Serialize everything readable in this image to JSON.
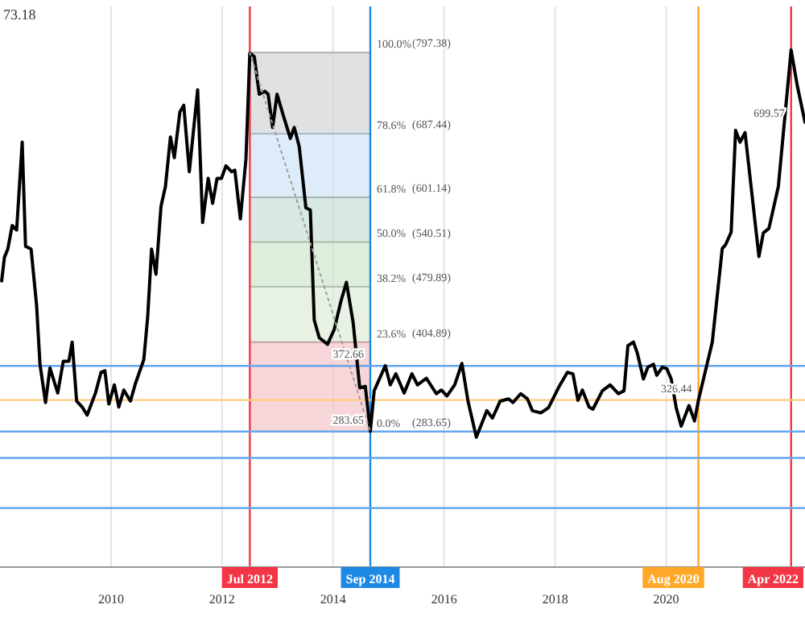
{
  "chart_data": {
    "type": "line",
    "xlim": [
      2008,
      2022.5
    ],
    "xticks": [
      2010,
      2012,
      2014,
      2016,
      2018,
      2020
    ],
    "ylim": [
      100,
      860
    ],
    "yticks": [
      {
        "value": 797.38,
        "label": "(797.38)"
      },
      {
        "value": 687.44,
        "label": "(687.44)"
      },
      {
        "value": 601.14,
        "label": "(601.14)"
      },
      {
        "value": 540.51,
        "label": "(540.51)"
      },
      {
        "value": 479.89,
        "label": "(479.89)"
      },
      {
        "value": 404.89,
        "label": "(404.89)"
      },
      {
        "value": 283.65,
        "label": "(283.65)"
      }
    ],
    "grid": "x",
    "marker": "none",
    "line_style": "solid",
    "series": [
      {
        "color": "#000000",
        "x": [
          2008.03,
          2008.08,
          2008.14,
          2008.22,
          2008.3,
          2008.4,
          2008.46,
          2008.56,
          2008.66,
          2008.72,
          2008.82,
          2008.9,
          2009.04,
          2009.14,
          2009.24,
          2009.3,
          2009.38,
          2009.48,
          2009.57,
          2009.72,
          2009.82,
          2009.89,
          2009.96,
          2010.06,
          2010.14,
          2010.23,
          2010.35,
          2010.44,
          2010.59,
          2010.66,
          2010.73,
          2010.81,
          2010.9,
          2010.98,
          2011.07,
          2011.14,
          2011.24,
          2011.31,
          2011.41,
          2011.56,
          2011.65,
          2011.75,
          2011.83,
          2011.91,
          2011.99,
          2012.07,
          2012.17,
          2012.23,
          2012.33,
          2012.43,
          2012.5,
          2012.58,
          2012.67,
          2012.77,
          2012.83,
          2012.91,
          2012.99,
          2013.1,
          2013.23,
          2013.3,
          2013.39,
          2013.51,
          2013.59,
          2013.66,
          2013.75,
          2013.9,
          2014.02,
          2014.14,
          2014.24,
          2014.36,
          2014.48,
          2014.58,
          2014.67,
          2014.74,
          2014.94,
          2015.03,
          2015.13,
          2015.28,
          2015.42,
          2015.52,
          2015.68,
          2015.86,
          2015.95,
          2016.05,
          2016.19,
          2016.32,
          2016.43,
          2016.58,
          2016.77,
          2016.87,
          2017.01,
          2017.16,
          2017.24,
          2017.38,
          2017.5,
          2017.59,
          2017.74,
          2017.88,
          2018.08,
          2018.22,
          2018.32,
          2018.41,
          2018.49,
          2018.61,
          2018.68,
          2018.85,
          2018.99,
          2019.14,
          2019.24,
          2019.31,
          2019.41,
          2019.48,
          2019.59,
          2019.67,
          2019.77,
          2019.83,
          2019.93,
          2020.01,
          2020.09,
          2020.18,
          2020.27,
          2020.41,
          2020.51,
          2020.58,
          2020.83,
          2021.01,
          2021.07,
          2021.17,
          2021.25,
          2021.33,
          2021.42,
          2021.67,
          2021.75,
          2021.85,
          2022.02,
          2022.25,
          2022.36,
          2022.5
        ],
        "values": [
          488,
          520,
          531,
          563,
          557,
          676,
          535,
          531,
          454,
          375,
          323,
          370,
          336,
          379,
          379,
          405,
          325,
          317,
          306,
          336,
          364,
          366,
          321,
          347,
          317,
          340,
          325,
          349,
          381,
          439,
          531,
          497,
          589,
          616,
          683,
          655,
          717,
          726,
          636,
          747,
          567,
          627,
          593,
          627,
          627,
          644,
          636,
          638,
          572,
          653,
          797,
          792,
          741,
          745,
          741,
          696,
          741,
          713,
          681,
          696,
          670,
          587,
          584,
          435,
          411,
          402,
          422,
          460,
          486,
          432,
          343,
          345,
          284,
          339,
          373,
          347,
          362,
          336,
          362,
          347,
          356,
          335,
          340,
          332,
          347,
          376,
          325,
          276,
          312,
          302,
          325,
          328,
          323,
          335,
          328,
          312,
          309,
          316,
          346,
          364,
          362,
          326,
          340,
          317,
          314,
          339,
          347,
          335,
          339,
          400,
          405,
          390,
          355,
          371,
          375,
          360,
          371,
          369,
          355,
          316,
          291,
          319,
          298,
          326,
          405,
          532,
          537,
          554,
          692,
          676,
          689,
          521,
          553,
          559,
          616,
          801,
          753,
          703
        ]
      },
      {
        "color": "#9e9e9e",
        "line_style": "dotted",
        "x": [
          2012.5,
          2014.67
        ],
        "values": [
          797.38,
          283.65
        ]
      }
    ],
    "bands": [
      {
        "axis": "y",
        "from": 687.44,
        "to": 797.38,
        "color": "#d6d7da"
      },
      {
        "axis": "y",
        "from": 601.14,
        "to": 687.44,
        "color": "#d3e5f7"
      },
      {
        "axis": "y",
        "from": 540.51,
        "to": 601.14,
        "color": "#c9e0dc"
      },
      {
        "axis": "y",
        "from": 479.89,
        "to": 540.51,
        "color": "#d3e8d0"
      },
      {
        "axis": "y",
        "from": 404.89,
        "to": 479.89,
        "color": "#dfeddc"
      },
      {
        "axis": "y",
        "from": 283.65,
        "to": 404.89,
        "color": "#f3c8cb"
      }
    ],
    "ref_lines": [
      {
        "axis": "x",
        "value": 2012.5,
        "label": "Jul 2012",
        "color": "#f23645"
      },
      {
        "axis": "x",
        "value": 2014.67,
        "label": "Sep 2014",
        "color": "#1e88e5"
      },
      {
        "axis": "x",
        "value": 2020.58,
        "label": "Aug 2020",
        "color": "#ffa726"
      },
      {
        "axis": "x",
        "value": 2022.25,
        "label": "Apr 2022",
        "color": "#f23645"
      },
      {
        "axis": "y",
        "value": 372.66,
        "color": "#64a7ee"
      },
      {
        "axis": "y",
        "value": 283.65,
        "color": "#64a7ee"
      },
      {
        "axis": "y",
        "value": 326.44,
        "color": "#ffcc80"
      },
      {
        "axis": "y",
        "value": 248,
        "color": "#64a7ee"
      },
      {
        "axis": "y",
        "value": 180,
        "color": "#64a7ee"
      }
    ],
    "annotations": [
      "73.18",
      {
        "text": "100.0%",
        "x": 2014.67,
        "y": 797.38
      },
      {
        "text": "78.6%",
        "x": 2014.67,
        "y": 687.44
      },
      {
        "text": "61.8%",
        "x": 2014.67,
        "y": 601.14
      },
      {
        "text": "50.0%",
        "x": 2014.67,
        "y": 540.51
      },
      {
        "text": "38.2%",
        "x": 2014.67,
        "y": 479.89
      },
      {
        "text": "23.6%",
        "x": 2014.67,
        "y": 404.89
      },
      {
        "text": "0.0%",
        "x": 2014.67,
        "y": 283.65
      },
      {
        "text": "372.66",
        "x": 2014.67,
        "y": 372.66
      },
      {
        "text": "283.65",
        "x": 2014.67,
        "y": 283.65
      },
      {
        "text": "326.44",
        "x": 2020.58,
        "y": 326.44
      },
      {
        "text": "699.57",
        "x": 2022.25,
        "y": 699.57
      }
    ]
  }
}
